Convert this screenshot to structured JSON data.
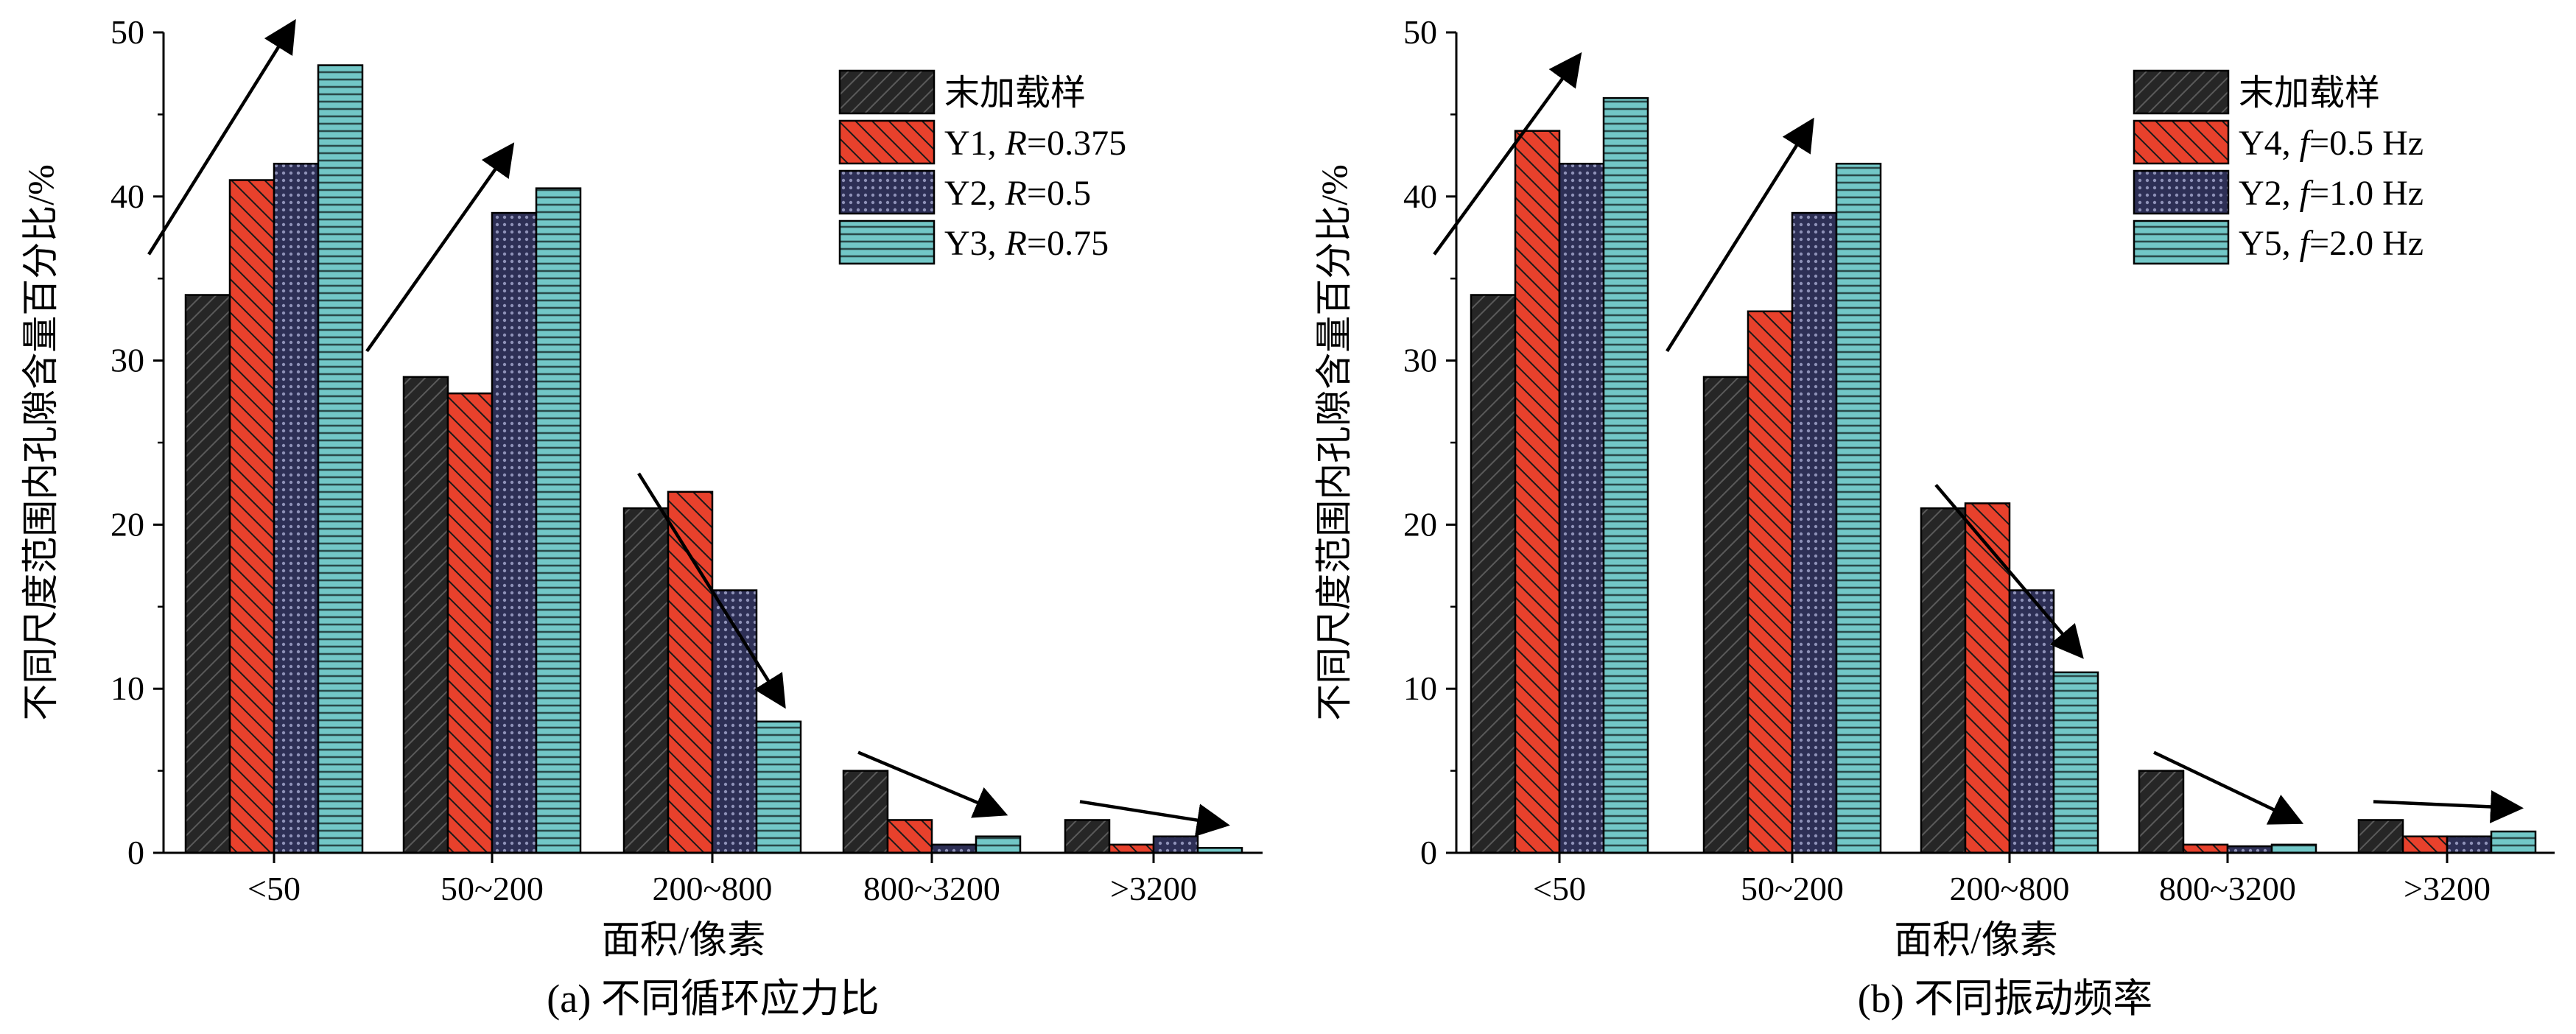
{
  "chart_data": [
    {
      "type": "bar",
      "caption": "(a) 不同循环应力比",
      "xlabel": "面积/像素",
      "ylabel": "不同尺度范围内孔隙含量百分比/%",
      "ylim": [
        0,
        50
      ],
      "yticks": [
        "0",
        "10",
        "20",
        "30",
        "40",
        "50"
      ],
      "categories": [
        "<50",
        "50~200",
        "200~800",
        "800~3200",
        ">3200"
      ],
      "series": [
        {
          "name": "末加载样",
          "legend_prefix": "末加载样",
          "legend_var": "",
          "legend_suffix": "",
          "values": [
            34,
            29,
            21,
            5,
            2
          ],
          "color": "#262626",
          "pattern": "hatch-dark"
        },
        {
          "name": "Y1, R=0.375",
          "legend_prefix": "Y1, ",
          "legend_var": "R",
          "legend_suffix": "=0.375",
          "values": [
            41,
            28,
            22,
            2,
            0.5
          ],
          "color": "#e8412c",
          "pattern": "hatch-red"
        },
        {
          "name": "Y2, R=0.5",
          "legend_prefix": "Y2, ",
          "legend_var": "R",
          "legend_suffix": "=0.5",
          "values": [
            42,
            39,
            16,
            0.5,
            1
          ],
          "color": "#2d2f55",
          "pattern": "dots-navy"
        },
        {
          "name": "Y3, R=0.75",
          "legend_prefix": "Y3, ",
          "legend_var": "R",
          "legend_suffix": "=0.75",
          "values": [
            48,
            40.5,
            8,
            1,
            0.3
          ],
          "color": "#72c7c7",
          "pattern": "lines-teal"
        }
      ],
      "arrows": [
        "up",
        "up",
        "down",
        "down",
        "down"
      ]
    },
    {
      "type": "bar",
      "caption": "(b) 不同振动频率",
      "xlabel": "面积/像素",
      "ylabel": "不同尺度范围内孔隙含量百分比/%",
      "ylim": [
        0,
        50
      ],
      "yticks": [
        "0",
        "10",
        "20",
        "30",
        "40",
        "50"
      ],
      "categories": [
        "<50",
        "50~200",
        "200~800",
        "800~3200",
        ">3200"
      ],
      "series": [
        {
          "name": "末加载样",
          "legend_prefix": "末加载样",
          "legend_var": "",
          "legend_suffix": "",
          "values": [
            34,
            29,
            21,
            5,
            2
          ],
          "color": "#262626",
          "pattern": "hatch-dark"
        },
        {
          "name": "Y4, f=0.5 Hz",
          "legend_prefix": "Y4, ",
          "legend_var": "f",
          "legend_suffix": "=0.5 Hz",
          "values": [
            44,
            33,
            21.3,
            0.5,
            1
          ],
          "color": "#e8412c",
          "pattern": "hatch-red"
        },
        {
          "name": "Y2, f=1.0 Hz",
          "legend_prefix": "Y2, ",
          "legend_var": "f",
          "legend_suffix": "=1.0 Hz",
          "values": [
            42,
            39,
            16,
            0.4,
            1
          ],
          "color": "#2d2f55",
          "pattern": "dots-navy"
        },
        {
          "name": "Y5, f=2.0 Hz",
          "legend_prefix": "Y5, ",
          "legend_var": "f",
          "legend_suffix": "=2.0 Hz",
          "values": [
            46,
            42,
            11,
            0.5,
            1.3
          ],
          "color": "#72c7c7",
          "pattern": "lines-teal"
        }
      ],
      "arrows": [
        "up",
        "up",
        "down",
        "down",
        "down"
      ]
    }
  ]
}
